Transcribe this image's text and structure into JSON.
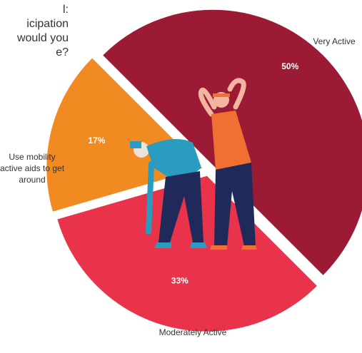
{
  "chart_data": {
    "type": "pie",
    "title_lines": [
      "l:",
      "icipation",
      "would you",
      "e?"
    ],
    "categories": [
      "Very Active",
      "Moderately Active",
      "Use mobility active aids to get around"
    ],
    "values": [
      50,
      33,
      17
    ],
    "value_labels": [
      "50%",
      "33%",
      "17%"
    ],
    "colors": [
      "#9b1b35",
      "#e8334a",
      "#f28a22"
    ]
  }
}
